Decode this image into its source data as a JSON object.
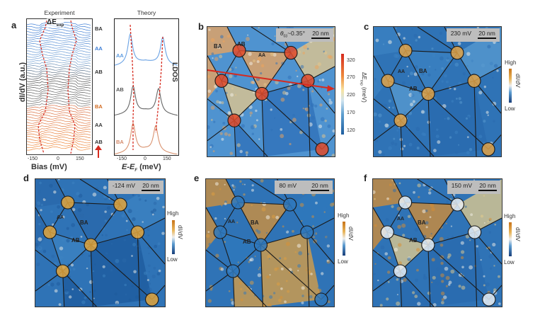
{
  "panels": {
    "a": {
      "label": "a",
      "experiment_title": "Experiment",
      "theory_title": "Theory",
      "exp_ylabel": "dI/dV (a.u.)",
      "exp_xlabel": "Bias (mV)",
      "theory_xlabel": "E-E",
      "theory_xlabel_sub": "F",
      "theory_xlabel_unit": " (meV)",
      "theory_ylabel": "LDOS",
      "delta_label": "ΔE",
      "delta_sub": "exp",
      "xticks": [
        "-150",
        "0",
        "150"
      ],
      "stack_labels": [
        "BA",
        "AA",
        "AB",
        "BA",
        "AA",
        "AB"
      ],
      "stack_colors": [
        "#333333",
        "#3a7bd5",
        "#333333",
        "#d2691e",
        "#333333",
        "#333333"
      ],
      "theory_labels": [
        "AA",
        "AB",
        "BA"
      ],
      "theory_colors": [
        "#5b9be0",
        "#555555",
        "#d4896a"
      ]
    },
    "b": {
      "label": "b",
      "angle_text": "θ",
      "angle_sub": "03",
      "angle_value": "~0.35°",
      "scale": "20 nm",
      "domains": [
        "BA",
        "AB",
        "AA"
      ],
      "colorbar_ticks": [
        "320",
        "270",
        "220",
        "170",
        "120"
      ],
      "colorbar_title": "ΔE",
      "colorbar_sub": "exp",
      "colorbar_unit": " (meV)"
    },
    "c": {
      "label": "c",
      "bias": "230 mV",
      "scale": "20 nm",
      "domains": [
        "AA",
        "BA",
        "AB"
      ],
      "cb_high": "High",
      "cb_low": "Low",
      "cb_title": "dI/dV"
    },
    "d": {
      "label": "d",
      "bias": "-124 mV",
      "scale": "20 nm",
      "domains": [
        "AA",
        "BA",
        "AB"
      ],
      "cb_high": "High",
      "cb_low": "Low",
      "cb_title": "dI/dV"
    },
    "e": {
      "label": "e",
      "bias": "80 mV",
      "scale": "20 nm",
      "domains": [
        "AA",
        "BA",
        "AB"
      ],
      "cb_high": "High",
      "cb_low": "Low",
      "cb_title": "dI/dV"
    },
    "f": {
      "label": "f",
      "bias": "150 mV",
      "scale": "20 nm",
      "domains": [
        "AA",
        "BA",
        "AB"
      ],
      "cb_high": "High",
      "cb_low": "Low",
      "cb_title": "dI/dV"
    }
  },
  "colors": {
    "blue": "#2a6fb0",
    "orange": "#d9962e",
    "red": "#d62a1e",
    "exp_blue": "#4a8fe0",
    "exp_orange": "#ee7d3a"
  }
}
